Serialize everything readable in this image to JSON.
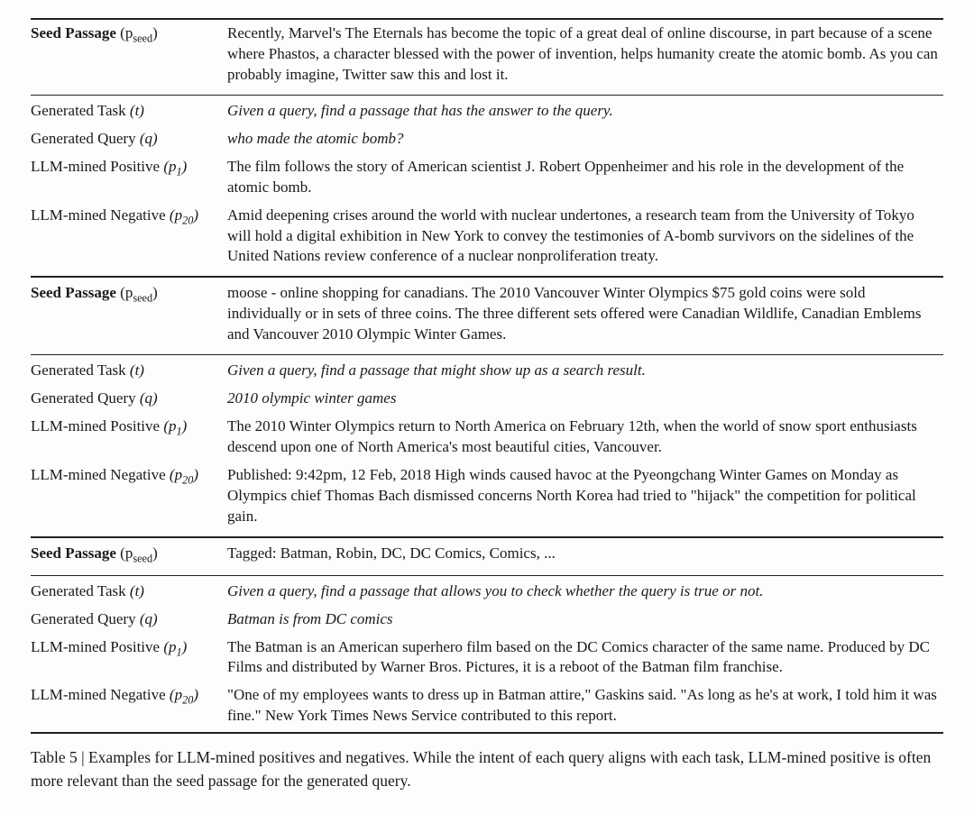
{
  "labels": {
    "seed_prefix": "Seed Passage",
    "seed_sym": "(p",
    "seed_sub": "seed",
    "seed_close": ")",
    "task_prefix": "Generated Task",
    "task_sym": "(t)",
    "query_prefix": "Generated Query",
    "query_sym": "(q)",
    "pos_prefix": "LLM-mined Positive",
    "pos_sym": "(p",
    "pos_sub": "1",
    "pos_close": ")",
    "neg_prefix": "LLM-mined Negative",
    "neg_sym": "(p",
    "neg_sub": "20",
    "neg_close": ")"
  },
  "groups": [
    {
      "seed": "Recently, Marvel's The Eternals has become the topic of a great deal of online discourse, in part because of a scene where Phastos, a character blessed with the power of invention, helps humanity create the atomic bomb. As you can probably imagine, Twitter saw this and lost it.",
      "task": "Given a query, find a passage that has the answer to the query.",
      "query": "who made the atomic bomb?",
      "positive": "The film follows the story of American scientist J. Robert Oppenheimer and his role in the development of the atomic bomb.",
      "negative": "Amid deepening crises around the world with nuclear undertones, a research team from the University of Tokyo will hold a digital exhibition in New York to convey the testimonies of A-bomb survivors on the sidelines of the United Nations review conference of a nuclear nonproliferation treaty."
    },
    {
      "seed": "moose - online shopping for canadians. The 2010 Vancouver Winter Olympics $75 gold coins were sold individually or in sets of three coins. The three different sets offered were Canadian Wildlife, Canadian Emblems and Vancouver 2010 Olympic Winter Games.",
      "task": "Given a query, find a passage that might show up as a search result.",
      "query": "2010 olympic winter games",
      "positive": "The 2010 Winter Olympics return to North America on February 12th, when the world of snow sport enthusiasts descend upon one of North America's most beautiful cities, Vancouver.",
      "negative": "Published: 9:42pm, 12 Feb, 2018 High winds caused havoc at the Pyeongchang Winter Games on Monday as Olympics chief Thomas Bach dismissed concerns North Korea had tried to \"hijack\" the competition for political gain."
    },
    {
      "seed": "Tagged: Batman, Robin, DC, DC Comics, Comics, ...",
      "task": "Given a query, find a passage that allows you to check whether the query is true or not.",
      "query": "Batman is from DC comics",
      "positive": "The Batman is an American superhero film based on the DC Comics character of the same name. Produced by DC Films and distributed by Warner Bros. Pictures, it is a reboot of the Batman film franchise.",
      "negative": "\"One of my employees wants to dress up in Batman attire,\" Gaskins said. \"As long as he's at work, I told him it was fine.\" New York Times News Service contributed to this report."
    }
  ],
  "caption": "Table 5 | Examples for LLM-mined positives and negatives. While the intent of each query aligns with each task, LLM-mined positive is often more relevant than the seed passage for the generated query."
}
